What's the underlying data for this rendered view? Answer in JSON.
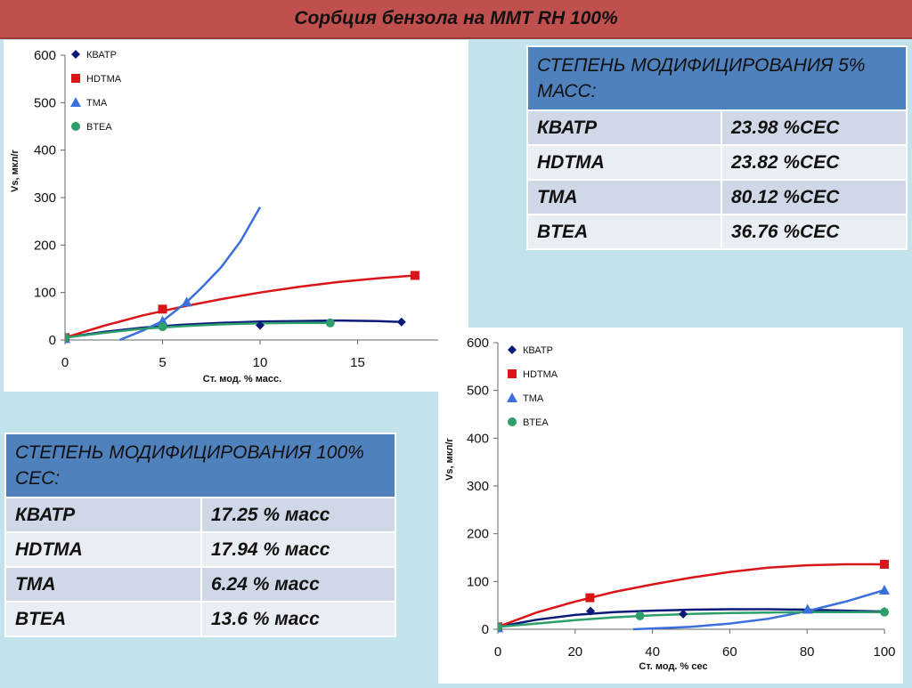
{
  "title": "Сорбция бензола на ММТ RH 100%",
  "colors": {
    "kvatr": "#0b1a7a",
    "hdtma": "#d9151a",
    "tma": "#3a6fdc",
    "btea": "#2e9e6a",
    "header_bg": "#4f81bd",
    "title_bg": "#c0504d"
  },
  "table_5": {
    "header": "СТЕПЕНЬ МОДИФИЦИРОВАНИЯ 5% МАСС:",
    "rows": [
      {
        "name": "КВАТР",
        "value": "23.98 %CEC"
      },
      {
        "name": "HDTMA",
        "value": "23.82 %CEC"
      },
      {
        "name": "TMA",
        "value": "80.12 %CEC"
      },
      {
        "name": "BTEA",
        "value": "36.76 %CEC"
      }
    ]
  },
  "table_100": {
    "header": "СТЕПЕНЬ МОДИФИЦИРОВАНИЯ 100% CEC:",
    "rows": [
      {
        "name": "КВАТР",
        "value": "17.25 % масс"
      },
      {
        "name": "HDTMA",
        "value": "17.94 % масс"
      },
      {
        "name": "TMA",
        "value": "6.24 % масс"
      },
      {
        "name": "BTEA",
        "value": "13.6 % масс"
      }
    ]
  },
  "chart_data": [
    {
      "type": "scatter",
      "title": "",
      "xlabel": "Ст. мод. % масс.",
      "ylabel": "Vs, мкл/г",
      "xlim": [
        0,
        20
      ],
      "ylim": [
        0,
        600
      ],
      "xticks": [
        0,
        5,
        10,
        15
      ],
      "yticks": [
        0,
        100,
        200,
        300,
        400,
        500,
        600
      ],
      "legend": "top-left",
      "series": [
        {
          "name": "КВАТР",
          "marker": "diamond",
          "color": "#0b1a7a",
          "points": [
            [
              0,
              5
            ],
            [
              5,
              35
            ],
            [
              10,
              31
            ],
            [
              17.25,
              38
            ]
          ],
          "trend": [
            [
              0,
              5
            ],
            [
              2,
              17
            ],
            [
              4,
              26
            ],
            [
              6,
              32
            ],
            [
              8,
              36
            ],
            [
              10,
              39
            ],
            [
              12,
              40
            ],
            [
              14,
              41
            ],
            [
              16,
              40
            ],
            [
              17.25,
              38
            ]
          ]
        },
        {
          "name": "HDTMA",
          "marker": "square",
          "color": "#d9151a",
          "points": [
            [
              0,
              5
            ],
            [
              5,
              65
            ],
            [
              17.94,
              136
            ]
          ],
          "trend": [
            [
              0,
              5
            ],
            [
              2,
              30
            ],
            [
              4,
              52
            ],
            [
              6,
              70
            ],
            [
              8,
              86
            ],
            [
              10,
              100
            ],
            [
              12,
              112
            ],
            [
              14,
              122
            ],
            [
              16,
              130
            ],
            [
              17.94,
              136
            ]
          ]
        },
        {
          "name": "TMA",
          "marker": "triangle",
          "color": "#3a6fdc",
          "points": [
            [
              0,
              3
            ],
            [
              5,
              40
            ],
            [
              6.24,
              80
            ]
          ],
          "trend": [
            [
              2.8,
              0
            ],
            [
              4,
              20
            ],
            [
              5,
              40
            ],
            [
              6.24,
              80
            ],
            [
              7,
              110
            ],
            [
              8,
              153
            ],
            [
              9,
              208
            ],
            [
              10,
              280
            ]
          ]
        },
        {
          "name": "BTEA",
          "marker": "circle",
          "color": "#2e9e6a",
          "points": [
            [
              0,
              5
            ],
            [
              5,
              28
            ],
            [
              13.6,
              36
            ]
          ],
          "trend": [
            [
              0,
              5
            ],
            [
              2,
              15
            ],
            [
              4,
              24
            ],
            [
              6,
              29
            ],
            [
              8,
              33
            ],
            [
              10,
              35
            ],
            [
              12,
              36
            ],
            [
              13.6,
              36
            ]
          ]
        }
      ]
    },
    {
      "type": "scatter",
      "title": "",
      "xlabel": "Ст. мод. % сес",
      "ylabel": "Vs, мкл/г",
      "xlim": [
        0,
        100
      ],
      "ylim": [
        0,
        600
      ],
      "xticks": [
        0,
        20,
        40,
        60,
        80,
        100
      ],
      "yticks": [
        0,
        100,
        200,
        300,
        400,
        500,
        600
      ],
      "legend": "top-left",
      "series": [
        {
          "name": "КВАТР",
          "marker": "diamond",
          "color": "#0b1a7a",
          "points": [
            [
              0,
              5
            ],
            [
              23.98,
              38
            ],
            [
              47.96,
              32
            ],
            [
              100,
              37
            ]
          ],
          "trend": [
            [
              0,
              5
            ],
            [
              10,
              20
            ],
            [
              20,
              30
            ],
            [
              30,
              36
            ],
            [
              40,
              39
            ],
            [
              50,
              41
            ],
            [
              60,
              42
            ],
            [
              70,
              42
            ],
            [
              80,
              41
            ],
            [
              90,
              39
            ],
            [
              100,
              37
            ]
          ]
        },
        {
          "name": "HDTMA",
          "marker": "square",
          "color": "#d9151a",
          "points": [
            [
              0,
              5
            ],
            [
              23.82,
              66
            ],
            [
              100,
              136
            ]
          ],
          "trend": [
            [
              0,
              5
            ],
            [
              10,
              35
            ],
            [
              20,
              58
            ],
            [
              30,
              78
            ],
            [
              40,
              94
            ],
            [
              50,
              108
            ],
            [
              60,
              120
            ],
            [
              70,
              129
            ],
            [
              80,
              134
            ],
            [
              90,
              136
            ],
            [
              100,
              136
            ]
          ]
        },
        {
          "name": "TMA",
          "marker": "triangle",
          "color": "#3a6fdc",
          "points": [
            [
              0,
              3
            ],
            [
              80.12,
              42
            ],
            [
              100,
              82
            ]
          ],
          "trend": [
            [
              35,
              0
            ],
            [
              50,
              5
            ],
            [
              60,
              12
            ],
            [
              70,
              22
            ],
            [
              80,
              38
            ],
            [
              90,
              58
            ],
            [
              100,
              82
            ]
          ]
        },
        {
          "name": "BTEA",
          "marker": "circle",
          "color": "#2e9e6a",
          "points": [
            [
              0,
              5
            ],
            [
              36.76,
              28
            ],
            [
              100,
              36
            ]
          ],
          "trend": [
            [
              0,
              5
            ],
            [
              10,
              12
            ],
            [
              20,
              19
            ],
            [
              30,
              25
            ],
            [
              40,
              29
            ],
            [
              50,
              32
            ],
            [
              60,
              34
            ],
            [
              70,
              35
            ],
            [
              80,
              36
            ],
            [
              90,
              36
            ],
            [
              100,
              36
            ]
          ]
        }
      ]
    }
  ]
}
